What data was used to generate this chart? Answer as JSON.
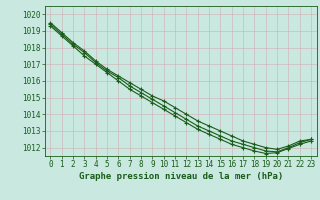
{
  "title": "Graphe pression niveau de la mer (hPa)",
  "bg_color": "#c8e8e0",
  "line_color": "#1a5c1a",
  "grid_color": "#a0c8c0",
  "ylim": [
    1011.5,
    1020.5
  ],
  "xlim": [
    -0.5,
    23.5
  ],
  "yticks": [
    1012,
    1013,
    1014,
    1015,
    1016,
    1017,
    1018,
    1019,
    1020
  ],
  "x_labels": [
    "0",
    "1",
    "2",
    "3",
    "4",
    "5",
    "6",
    "7",
    "8",
    "9",
    "10",
    "11",
    "12",
    "13",
    "14",
    "15",
    "16",
    "17",
    "18",
    "19",
    "20",
    "21",
    "22",
    "23"
  ],
  "series": [
    [
      1019.5,
      1018.9,
      1018.3,
      1017.8,
      1017.2,
      1016.7,
      1016.3,
      1015.9,
      1015.5,
      1015.1,
      1014.8,
      1014.4,
      1014.0,
      1013.6,
      1013.3,
      1013.0,
      1012.7,
      1012.4,
      1012.2,
      1012.0,
      1011.9,
      1012.1,
      1012.4,
      1012.5
    ],
    [
      1019.4,
      1018.8,
      1018.2,
      1017.7,
      1017.1,
      1016.6,
      1016.2,
      1015.7,
      1015.3,
      1014.9,
      1014.5,
      1014.1,
      1013.7,
      1013.3,
      1013.0,
      1012.7,
      1012.4,
      1012.2,
      1012.0,
      1011.8,
      1011.75,
      1012.0,
      1012.3,
      1012.5
    ],
    [
      1019.3,
      1018.7,
      1018.1,
      1017.5,
      1017.0,
      1016.5,
      1016.0,
      1015.5,
      1015.1,
      1014.7,
      1014.3,
      1013.9,
      1013.5,
      1013.1,
      1012.8,
      1012.5,
      1012.2,
      1012.0,
      1011.8,
      1011.65,
      1011.7,
      1011.95,
      1012.2,
      1012.4
    ]
  ]
}
